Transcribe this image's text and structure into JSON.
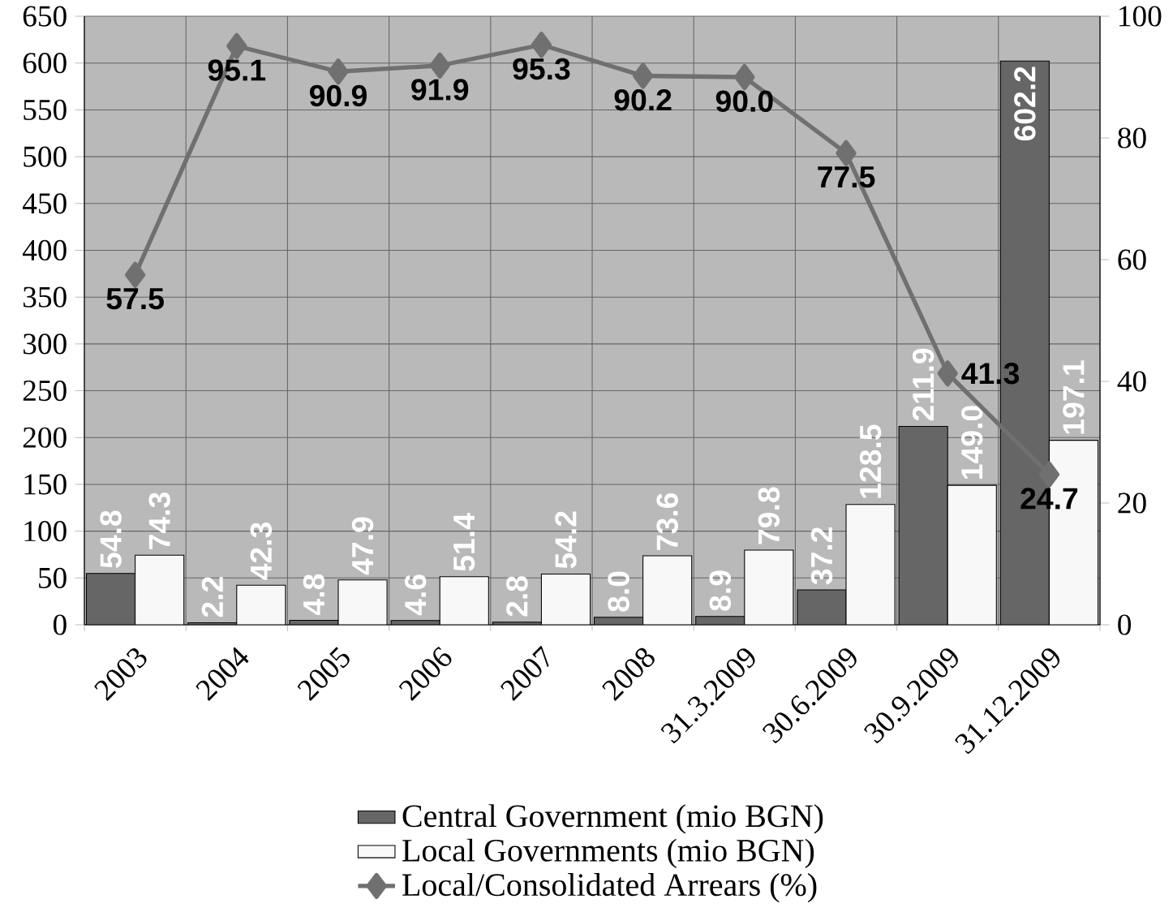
{
  "chart_data": {
    "type": "bar",
    "categories": [
      "2003",
      "2004",
      "2005",
      "2006",
      "2007",
      "2008",
      "31.3.2009",
      "30.6.2009",
      "30.9.2009",
      "31.12.2009"
    ],
    "series": [
      {
        "name": "Central Government (mio BGN)",
        "color": "#666666",
        "values": [
          54.8,
          2.2,
          4.8,
          4.6,
          2.8,
          8.0,
          8.9,
          37.2,
          211.9,
          602.2
        ],
        "value_labels": [
          "54.8",
          "2.2",
          "4.8",
          "4.6",
          "2.8",
          "8.0",
          "8.9",
          "37.2",
          "211.9",
          "602.2"
        ]
      },
      {
        "name": "Local Governments (mio BGN)",
        "color": "#f8f8f8",
        "values": [
          74.3,
          42.3,
          47.9,
          51.4,
          54.2,
          73.6,
          79.8,
          128.5,
          149.0,
          197.1
        ],
        "value_labels": [
          "74.3",
          "42.3",
          "47.9",
          "51.4",
          "54.2",
          "73.6",
          "79.8",
          "128.5",
          "149.0",
          "197.1"
        ]
      },
      {
        "name": "Local/Consolidated Arrears (%)",
        "type": "line",
        "axis": "y2",
        "color": "#707070",
        "marker": "diamond",
        "values": [
          57.5,
          95.1,
          90.9,
          91.9,
          95.3,
          90.2,
          90.0,
          77.5,
          41.3,
          24.7
        ],
        "value_labels": [
          "57.5",
          "95.1",
          "90.9",
          "91.9",
          "95.3",
          "90.2",
          "90.0",
          "77.5",
          "41.3",
          "24.7"
        ]
      }
    ],
    "ylim": [
      0,
      650
    ],
    "yticks": [
      0,
      50,
      100,
      150,
      200,
      250,
      300,
      350,
      400,
      450,
      500,
      550,
      600,
      650
    ],
    "y2lim": [
      0,
      100
    ],
    "y2ticks": [
      0,
      20,
      40,
      60,
      80,
      100
    ],
    "grid": true,
    "legend": "bottom"
  }
}
